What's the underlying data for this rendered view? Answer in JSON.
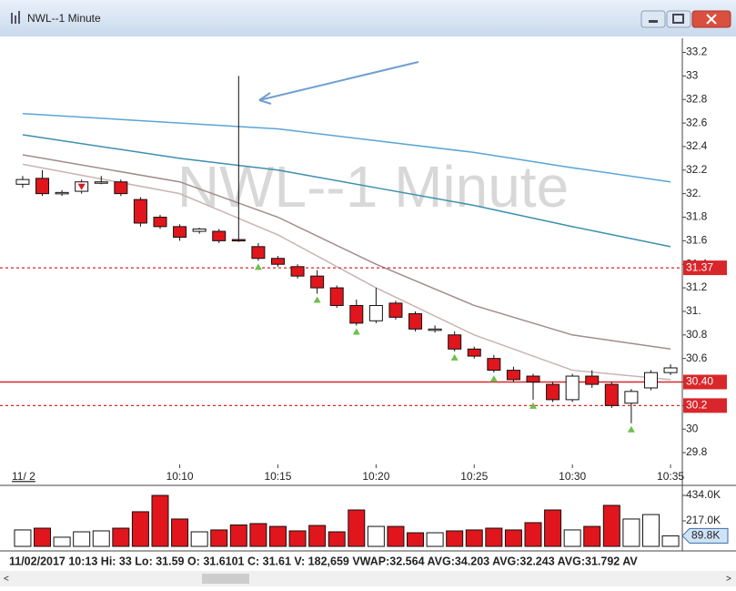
{
  "window": {
    "title": "NWL--1 Minute"
  },
  "chart_data": {
    "type": "candlestick",
    "watermark": "NWL--1 Minute",
    "date_label": "11/ 2",
    "x": [
      2,
      3,
      4,
      5,
      6,
      7,
      8,
      9,
      10,
      11,
      12,
      13,
      14,
      15,
      16,
      17,
      18,
      19,
      20,
      21,
      22,
      23,
      24,
      25,
      26,
      27,
      28,
      29,
      30,
      31,
      32,
      33,
      34,
      35
    ],
    "open": [
      32.08,
      32.13,
      32.0,
      32.02,
      32.1,
      32.1,
      31.95,
      31.8,
      31.72,
      31.68,
      31.68,
      31.6101,
      31.55,
      31.45,
      31.38,
      31.3,
      31.2,
      31.05,
      30.92,
      31.07,
      30.98,
      30.85,
      30.8,
      30.68,
      30.6,
      30.5,
      30.45,
      30.38,
      30.25,
      30.45,
      30.38,
      30.22,
      30.35,
      30.48
    ],
    "high": [
      32.15,
      32.2,
      32.03,
      32.12,
      32.15,
      32.12,
      31.97,
      31.82,
      31.74,
      31.71,
      31.7,
      33,
      31.58,
      31.47,
      31.4,
      31.35,
      31.22,
      31.1,
      31.2,
      31.09,
      31.0,
      30.88,
      30.83,
      30.7,
      30.63,
      30.53,
      30.47,
      30.4,
      30.47,
      30.5,
      30.4,
      30.34,
      30.5,
      30.55
    ],
    "low": [
      32.05,
      31.98,
      31.98,
      32.0,
      32.08,
      31.98,
      31.72,
      31.7,
      31.6,
      31.66,
      31.58,
      31.59,
      31.43,
      31.38,
      31.28,
      31.15,
      31.03,
      30.88,
      30.9,
      30.93,
      30.83,
      30.82,
      30.66,
      30.6,
      30.48,
      30.4,
      30.25,
      30.23,
      30.23,
      30.35,
      30.18,
      30.05,
      30.33,
      30.46
    ],
    "close": [
      32.12,
      32.0,
      32.01,
      32.1,
      32.1,
      32.0,
      31.75,
      31.72,
      31.63,
      31.7,
      31.6,
      31.61,
      31.45,
      31.4,
      31.3,
      31.2,
      31.05,
      30.9,
      31.05,
      30.95,
      30.85,
      30.85,
      30.68,
      30.62,
      30.5,
      30.42,
      30.4,
      30.25,
      30.45,
      30.38,
      30.2,
      30.32,
      30.48,
      30.52
    ],
    "signal": [
      null,
      null,
      null,
      "down",
      null,
      null,
      null,
      null,
      null,
      null,
      null,
      null,
      "up",
      null,
      null,
      "up",
      null,
      "up",
      null,
      null,
      null,
      null,
      "up",
      null,
      "up",
      null,
      "up",
      null,
      null,
      null,
      null,
      "up",
      null,
      null
    ],
    "up_color": "#ffffff",
    "down_color": "#e0161c",
    "signal_up_color": "#6ec04a",
    "signal_down_color": "#e0161c",
    "volume": [
      140,
      155,
      78,
      124,
      132,
      155,
      295,
      434,
      233,
      124,
      140,
      182.659,
      194,
      170,
      132,
      178,
      124,
      310,
      170,
      170,
      116,
      116,
      132,
      140,
      155,
      140,
      202,
      310,
      140,
      170,
      349,
      233,
      271,
      89.8
    ],
    "volume_last_label": "89.8K",
    "vlim": [
      0,
      504
    ],
    "vticks": [
      {
        "value": 434,
        "label": "434.0K"
      },
      {
        "value": 217,
        "label": "217.0K"
      }
    ],
    "xlim": [
      1.4,
      35.6
    ],
    "xticks": [
      {
        "value": 10,
        "label": "10:10"
      },
      {
        "value": 15,
        "label": "10:15"
      },
      {
        "value": 20,
        "label": "10:20"
      },
      {
        "value": 25,
        "label": "10:25"
      },
      {
        "value": 30,
        "label": "10:30"
      },
      {
        "value": 35,
        "label": "10:35"
      }
    ],
    "ylim": [
      29.7,
      33.32
    ],
    "yticks": [
      33.2,
      33,
      32.8,
      32.6,
      32.4,
      32.2,
      {
        "value": 32,
        "label": "32."
      },
      31.8,
      31.6,
      31.4,
      31.2,
      {
        "value": 31,
        "label": "31."
      },
      30.8,
      30.6,
      30.4,
      30.2,
      30,
      29.8
    ],
    "levels": [
      {
        "value": 31.37,
        "label": "31.37",
        "style": "dotted"
      },
      {
        "value": 30.4,
        "label": "30.40",
        "style": "solid"
      },
      {
        "value": 30.2,
        "label": "30.2",
        "style": "dotted"
      }
    ],
    "level_color": "#d9262a",
    "series": [
      {
        "color": "#5aa5d6",
        "x": [
          2,
          10,
          15,
          20,
          25,
          30,
          35
        ],
        "values": [
          32.68,
          32.6,
          32.55,
          32.45,
          32.35,
          32.22,
          32.1
        ]
      },
      {
        "color": "#3d8fb0",
        "x": [
          2,
          10,
          15,
          20,
          25,
          30,
          35
        ],
        "values": [
          32.5,
          32.3,
          32.2,
          32.05,
          31.9,
          31.72,
          31.55
        ]
      },
      {
        "color": "#a08c8c",
        "x": [
          2,
          10,
          15,
          20,
          25,
          30,
          35
        ],
        "values": [
          32.33,
          32.1,
          31.8,
          31.4,
          31.05,
          30.8,
          30.68
        ]
      },
      {
        "color": "#c8b4b4",
        "x": [
          2,
          10,
          15,
          20,
          25,
          30,
          35
        ],
        "values": [
          32.25,
          32.0,
          31.65,
          31.2,
          30.8,
          30.5,
          30.42
        ]
      }
    ]
  },
  "status_bar": "11/02/2017 10:13  Hi: 33  Lo: 31.59  O: 31.6101  C: 31.61  V: 182,659  VWAP:32.564  AVG:34.203  AVG:32.243  AVG:31.792  AV"
}
